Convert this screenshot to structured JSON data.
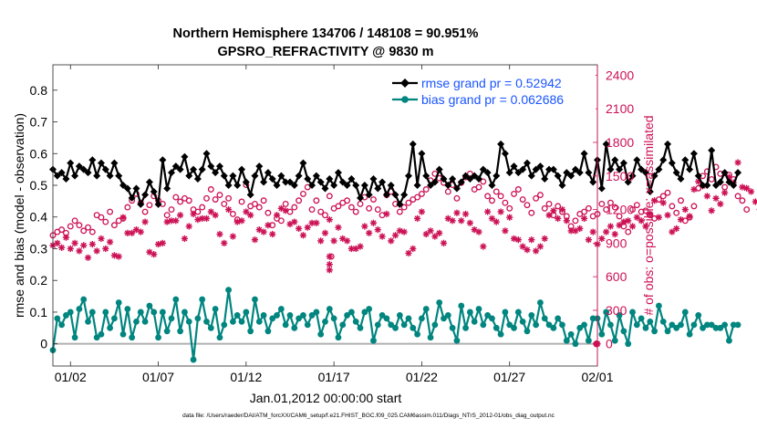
{
  "chart_data": {
    "type": "line",
    "title_line1": "Northern Hemisphere 134706 / 148108 = 90.951%",
    "title_line2": "GPSRO_REFRACTIVITY @ 9830 m",
    "xlabel": "Jan.01,2012 00:00:00 start",
    "ylabel_left": "rmse and bias (model - observation)",
    "ylabel_right": "# of obs: o=possible; ×=assimilated",
    "footer": "data file: /Users/raeder/DAI/ATM_forcXX/CAM6_setup/f.e21.FHIST_BGC.f09_025.CAM6assim.011/Diags_NTrS_2012-01/obs_diag_output.nc",
    "xlim": [
      0.5,
      31.5
    ],
    "ylim_left": [
      -0.07,
      0.88
    ],
    "ylim_right": [
      -198,
      2493
    ],
    "x_ticks": [
      1.5,
      6.5,
      11.5,
      16.5,
      21.5,
      26.5,
      31.5
    ],
    "x_tick_labels": [
      "01/02",
      "01/07",
      "01/12",
      "01/17",
      "01/22",
      "01/27",
      "02/01"
    ],
    "y_ticks_left": [
      0,
      0.1,
      0.2,
      0.3,
      0.4,
      0.5,
      0.6,
      0.7,
      0.8
    ],
    "y_tick_labels_left": [
      "0",
      "0.1",
      "0.2",
      "0.3",
      "0.4",
      "0.5",
      "0.6",
      "0.7",
      "0.8"
    ],
    "y_ticks_right": [
      0,
      300,
      600,
      900,
      1200,
      1500,
      1800,
      2100,
      2400
    ],
    "y_tick_labels_right": [
      "0",
      "300",
      "600",
      "900",
      "1200",
      "1500",
      "1800",
      "2100",
      "2400"
    ],
    "series": [
      {
        "name": "rmse grand pr = 0.52942",
        "color": "#000000",
        "start": 0.5,
        "step": 0.25,
        "values": [
          0.55,
          0.53,
          0.54,
          0.52,
          0.57,
          0.53,
          0.56,
          0.55,
          0.54,
          0.58,
          0.53,
          0.57,
          0.55,
          0.53,
          0.57,
          0.53,
          0.5,
          0.49,
          0.46,
          0.49,
          0.44,
          0.47,
          0.51,
          0.48,
          0.44,
          0.58,
          0.49,
          0.54,
          0.56,
          0.55,
          0.59,
          0.53,
          0.55,
          0.52,
          0.55,
          0.6,
          0.56,
          0.54,
          0.56,
          0.53,
          0.5,
          0.53,
          0.5,
          0.55,
          0.51,
          0.47,
          0.53,
          0.56,
          0.51,
          0.54,
          0.52,
          0.5,
          0.53,
          0.51,
          0.51,
          0.5,
          0.53,
          0.57,
          0.52,
          0.5,
          0.53,
          0.51,
          0.49,
          0.52,
          0.5,
          0.54,
          0.51,
          0.5,
          0.52,
          0.5,
          0.46,
          0.5,
          0.47,
          0.52,
          0.49,
          0.51,
          0.47,
          0.5,
          0.47,
          0.44,
          0.47,
          0.53,
          0.63,
          0.5,
          0.6,
          0.53,
          0.5,
          0.51,
          0.55,
          0.52,
          0.5,
          0.52,
          0.49,
          0.51,
          0.53,
          0.52,
          0.53,
          0.52,
          0.55,
          0.54,
          0.5,
          0.53,
          0.63,
          0.6,
          0.54,
          0.56,
          0.54,
          0.55,
          0.57,
          0.53,
          0.55,
          0.56,
          0.52,
          0.55,
          0.55,
          0.53,
          0.5,
          0.54,
          0.53,
          0.55,
          0.54,
          0.6,
          0.54,
          0.51,
          0.58,
          0.49,
          0.63,
          0.55,
          0.58,
          0.55,
          0.57,
          0.51,
          0.53,
          0.58,
          0.55,
          0.54,
          0.48,
          0.53,
          0.55,
          0.58,
          0.63,
          0.57,
          0.54,
          0.52,
          0.58,
          0.55,
          0.6,
          0.53,
          0.5,
          0.5,
          0.61,
          0.5,
          0.51,
          0.54,
          0.51,
          0.5,
          0.54
        ]
      },
      {
        "name": "bias grand pr = 0.062686",
        "color": "#00857f",
        "start": 0.5,
        "step": 0.25,
        "values": [
          -0.02,
          0.08,
          0.06,
          0.09,
          0.1,
          0.02,
          0.11,
          0.14,
          0.07,
          0.1,
          0.02,
          0.03,
          0.1,
          0.05,
          0.08,
          0.13,
          0.03,
          0.11,
          0.02,
          0.07,
          0.1,
          0.07,
          0.12,
          0.1,
          0.02,
          0.1,
          0.04,
          0.08,
          0.14,
          0.04,
          0.1,
          0.07,
          -0.05,
          0.08,
          0.14,
          0.07,
          0.05,
          0.11,
          0.02,
          0.06,
          0.17,
          0.07,
          0.09,
          0.07,
          0.1,
          0.04,
          0.14,
          0.07,
          0.09,
          0.04,
          0.08,
          0.09,
          0.11,
          0.06,
          0.09,
          0.05,
          0.08,
          0.09,
          0.06,
          0.09,
          0.1,
          0.03,
          0.07,
          0.11,
          0.08,
          0.02,
          0.06,
          0.09,
          0.1,
          0.07,
          0.05,
          0.1,
          0.11,
          0.01,
          0.06,
          0.09,
          0.08,
          0.06,
          0.05,
          0.09,
          0.06,
          0.08,
          0.05,
          0.03,
          0.08,
          0.11,
          0.02,
          0.06,
          0.13,
          0.08,
          0.09,
          0.05,
          0.01,
          0.12,
          0.05,
          0.1,
          0.07,
          0.11,
          0.06,
          0.09,
          0.08,
          0.05,
          0.03,
          0.1,
          0.06,
          0.05,
          0.1,
          0.07,
          0.04,
          0.09,
          0.06,
          0.13,
          0.08,
          0.06,
          0.05,
          0.08,
          0.06,
          0.01,
          0.03,
          0.0,
          0.05,
          0.06,
          0.01,
          0.08,
          0.08,
          0.03,
          0.1,
          0.06,
          0.01,
          0.09,
          0.04,
          0.0,
          0.1,
          0.06,
          0.08,
          0.05,
          0.07,
          0.04,
          0.12,
          0.07,
          0.04,
          0.06,
          0.05,
          0.06,
          0.1,
          0.03,
          0.06,
          0.09,
          0.05,
          0.06,
          0.06,
          0.05,
          0.05,
          0.06,
          0.01,
          0.06,
          0.06
        ]
      },
      {
        "name": "possible obs",
        "color": "#cc1155",
        "start": 0.5,
        "step": 0.25,
        "values": [
          970,
          1000,
          1020,
          990,
          1050,
          1100,
          1060,
          1010,
          1040,
          1000,
          1150,
          1130,
          1090,
          1180,
          1060,
          1100,
          1120,
          1220,
          1280,
          1340,
          1260,
          1180,
          1240,
          1320,
          1280,
          1250,
          1150,
          1200,
          1310,
          1270,
          1300,
          1280,
          1200,
          1180,
          1220,
          1300,
          1380,
          1290,
          1330,
          1250,
          1300,
          1160,
          1110,
          1270,
          1420,
          1230,
          1250,
          1220,
          1280,
          1170,
          1060,
          1120,
          1100,
          1250,
          1180,
          1220,
          1280,
          1340,
          1400,
          1200,
          1280,
          1180,
          1150,
          1320,
          1210,
          1230,
          1260,
          1280,
          1220,
          1180,
          1250,
          1310,
          1210,
          1290,
          1200,
          1150,
          1330,
          1360,
          1250,
          1180,
          1220,
          1260,
          1290,
          1310,
          1340,
          1380,
          1460,
          1520,
          1480,
          1440,
          1360,
          1420,
          1300,
          1440,
          1490,
          1520,
          1380,
          1400,
          1450,
          1320,
          1280,
          1360,
          1320,
          1260,
          1210,
          1340,
          1380,
          1290,
          1240,
          1170,
          1300,
          1330,
          1210,
          1250,
          1150,
          1230,
          1180,
          1140,
          1050,
          1100,
          1160,
          1180,
          1210,
          1140,
          1160,
          1250,
          1200,
          1260,
          1220,
          1140,
          1050,
          1000,
          1200,
          1240,
          1180,
          1190,
          1150,
          1120,
          1290,
          1320,
          1350,
          1230,
          1170,
          1280,
          1100,
          1130,
          1230,
          1390,
          1500,
          1540,
          1470,
          1580,
          1520,
          1400,
          1510,
          1470,
          1320,
          1280,
          1200
        ]
      },
      {
        "name": "assimilated obs",
        "color": "#cc1155",
        "start": 0.5,
        "step": 0.25,
        "values": [
          880,
          900,
          860,
          950,
          850,
          900,
          830,
          880,
          770,
          890,
          830,
          940,
          850,
          910,
          790,
          780,
          1130,
          990,
          990,
          1020,
          1000,
          1090,
          820,
          800,
          890,
          900,
          1090,
          1100,
          1100,
          1150,
          940,
          1050,
          1160,
          1110,
          1120,
          1120,
          1180,
          1150,
          980,
          900,
          1200,
          960,
          1090,
          1100,
          1180,
          1150,
          930,
          1020,
          1000,
          1060,
          980,
          1150,
          1210,
          1190,
          1070,
          1090,
          1030,
          970,
          1040,
          1080,
          1080,
          920,
          990,
          1110,
          920,
          1040,
          940,
          920,
          850,
          850,
          870,
          1050,
          990,
          1080,
          1020,
          960,
          1160,
          920,
          970,
          1010,
          1000,
          810,
          850,
          1120,
          1180,
          980,
          1010,
          960,
          990,
          900,
          1120,
          1100,
          1170,
          1100,
          1160,
          1080,
          1020,
          1000,
          870,
          1180,
          1120,
          1090,
          1180,
          1010,
          1130,
          940,
          930,
          870,
          840,
          930,
          830,
          870,
          940,
          1150,
          1190,
          1120,
          1200,
          1100,
          1010,
          1010,
          1030,
          1120,
          930,
          1000,
          890,
          940,
          1000,
          1050,
          980,
          1060,
          1090,
          1100,
          1050,
          1130,
          1100,
          1050,
          1160,
          1280,
          1130,
          1260,
          1150,
          1000,
          1030,
          1110,
          1200,
          1140,
          1380,
          1450,
          1410,
          1320,
          1190,
          1300,
          1250,
          1350,
          1490,
          1440,
          1620,
          1400,
          1390,
          1360,
          1270,
          1200
        ]
      }
    ],
    "dips": [
      {
        "series": "assimilated obs",
        "x": 16.25,
        "values": [
          780,
          710,
          660
        ]
      },
      {
        "series": "possible obs",
        "x": 16.35,
        "values": [
          780
        ]
      }
    ],
    "zero_points": [
      {
        "series": "assimilated obs",
        "x": 31.5,
        "value": 0
      },
      {
        "series": "possible obs",
        "x": 31.45,
        "value": 0
      }
    ]
  }
}
